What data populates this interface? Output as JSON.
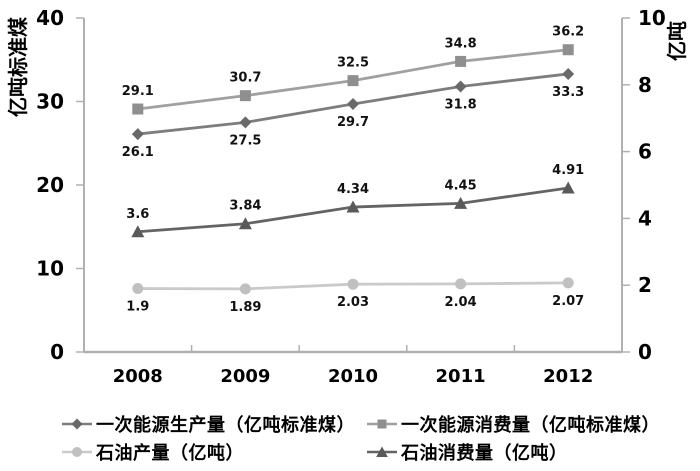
{
  "chart_data": {
    "type": "line",
    "categories": [
      "2008",
      "2009",
      "2010",
      "2011",
      "2012"
    ],
    "left_axis": {
      "title": "亿吨标准煤",
      "min": 0,
      "max": 40,
      "step": 10,
      "tick_labels": [
        "0",
        "10",
        "20",
        "30",
        "40"
      ]
    },
    "right_axis": {
      "title": "亿吨",
      "min": 0,
      "max": 10,
      "step": 2,
      "tick_labels": [
        "0",
        "2",
        "4",
        "6",
        "8",
        "10"
      ]
    },
    "grid": false,
    "legend_position": "bottom",
    "axis_color": "#b0b0b0",
    "text_color": "#000000",
    "series": [
      {
        "name": "一次能源生产量（亿吨标准煤）",
        "marker": "diamond",
        "axis": "left",
        "color": "#696969",
        "line_color": "#7d7d7d",
        "values": [
          26.1,
          27.5,
          29.7,
          31.8,
          33.3
        ],
        "labels": [
          "26.1",
          "27.5",
          "29.7",
          "31.8",
          "33.3"
        ],
        "label_position": "below"
      },
      {
        "name": "一次能源消费量（亿吨标准煤）",
        "marker": "square",
        "axis": "left",
        "color": "#8f8f8f",
        "line_color": "#a0a0a0",
        "values": [
          29.1,
          30.7,
          32.5,
          34.8,
          36.2
        ],
        "labels": [
          "29.1",
          "30.7",
          "32.5",
          "34.8",
          "36.2"
        ],
        "label_position": "above"
      },
      {
        "name": "石油产量（亿吨）",
        "marker": "circle",
        "axis": "right",
        "color": "#c0c0c0",
        "line_color": "#cacaca",
        "values": [
          1.9,
          1.89,
          2.03,
          2.04,
          2.07
        ],
        "labels": [
          "1.9",
          "1.89",
          "2.03",
          "2.04",
          "2.07"
        ],
        "label_position": "below"
      },
      {
        "name": "石油消费量（亿吨）",
        "marker": "triangle",
        "axis": "right",
        "color": "#595959",
        "line_color": "#646464",
        "values": [
          3.6,
          3.84,
          4.34,
          4.45,
          4.91
        ],
        "labels": [
          "3.6",
          "3.84",
          "4.34",
          "4.45",
          "4.91"
        ],
        "label_position": "above"
      }
    ]
  }
}
